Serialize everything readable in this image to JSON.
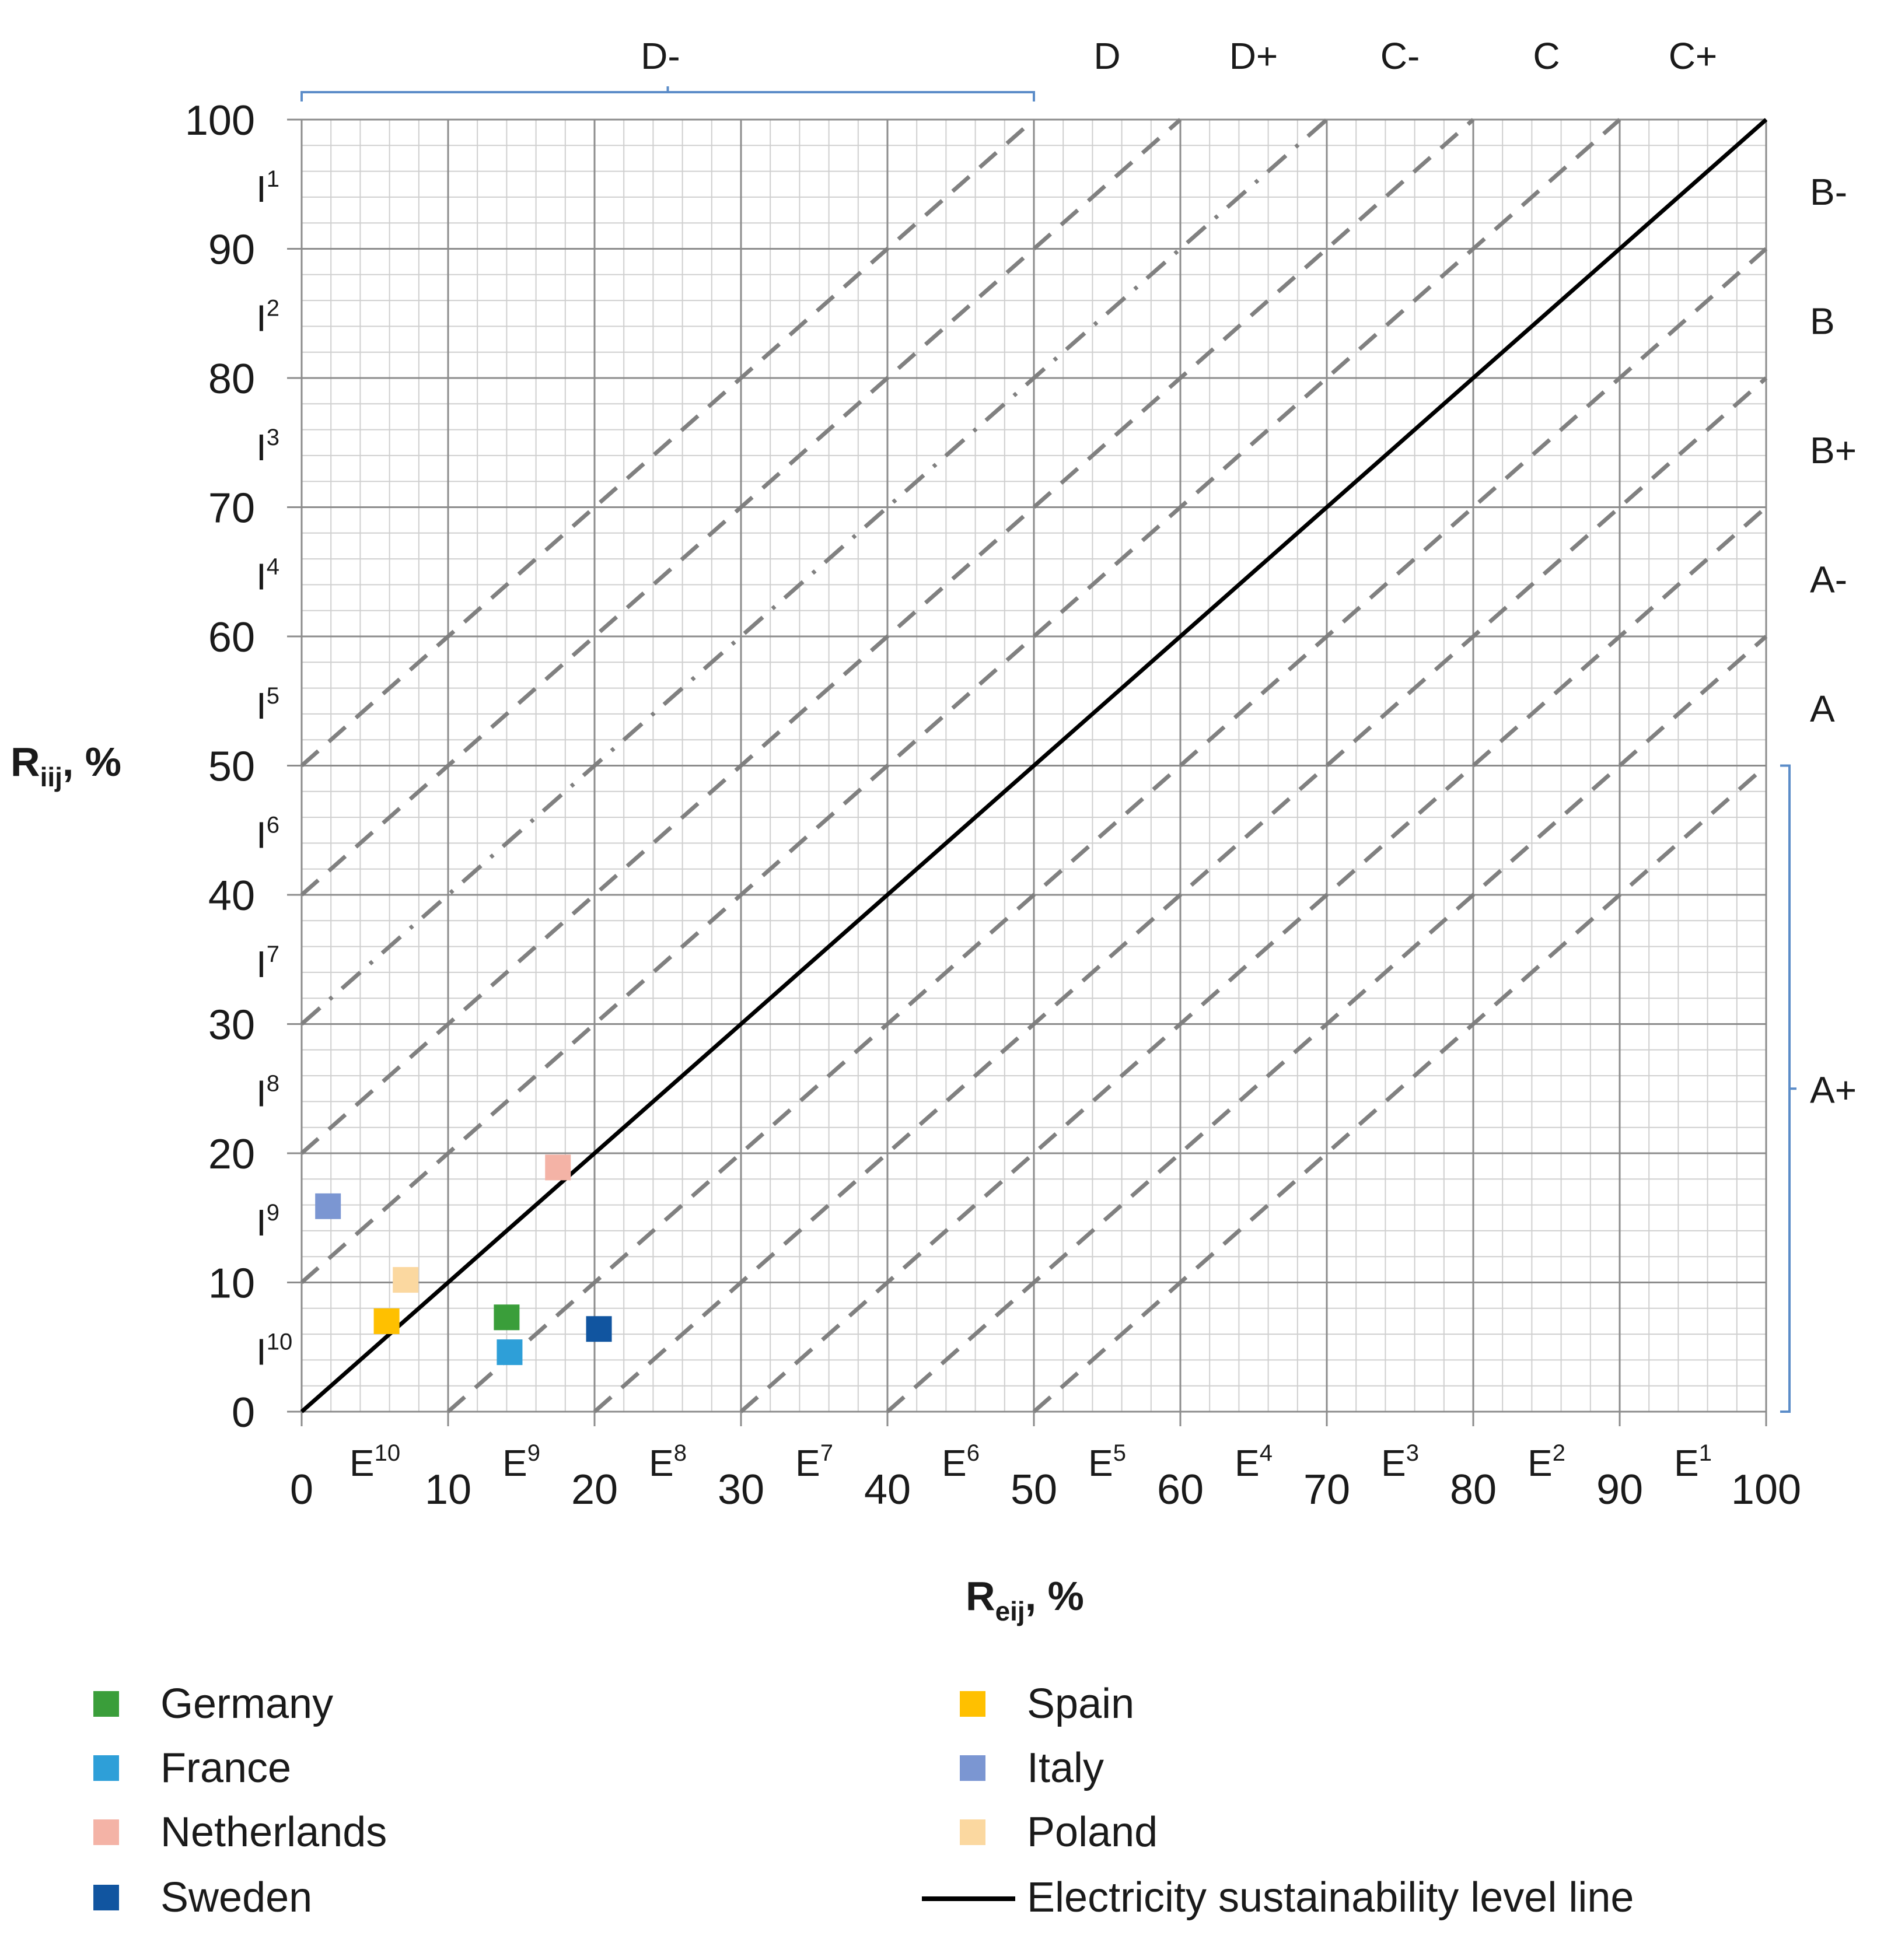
{
  "chart_data": {
    "type": "scatter",
    "title": "",
    "xlabel": "R",
    "xlabel_sub": "eij",
    "xlabel_unit": ", %",
    "ylabel": "R",
    "ylabel_sub": "iij",
    "ylabel_unit": ", %",
    "xlim": [
      0,
      100
    ],
    "ylim": [
      0,
      100
    ],
    "x_ticks": [
      "0",
      "10",
      "20",
      "30",
      "40",
      "50",
      "60",
      "70",
      "80",
      "90",
      "100"
    ],
    "y_ticks": [
      "0",
      "10",
      "20",
      "30",
      "40",
      "50",
      "60",
      "70",
      "80",
      "90",
      "100"
    ],
    "grid": true,
    "minor_grid_step": 2,
    "series": [
      {
        "name": "Germany",
        "color": "#3a9e3a",
        "points": [
          {
            "x": 14,
            "y": 7.3
          }
        ]
      },
      {
        "name": "France",
        "color": "#2e9fd8",
        "points": [
          {
            "x": 14.2,
            "y": 4.6
          }
        ]
      },
      {
        "name": "Netherlands",
        "color": "#f4b3a6",
        "points": [
          {
            "x": 17.5,
            "y": 18.9
          }
        ]
      },
      {
        "name": "Sweden",
        "color": "#1155a0",
        "points": [
          {
            "x": 20.3,
            "y": 6.4
          }
        ]
      },
      {
        "name": "Spain",
        "color": "#ffc000",
        "points": [
          {
            "x": 5.8,
            "y": 7.0
          }
        ]
      },
      {
        "name": "Italy",
        "color": "#7b96d2",
        "points": [
          {
            "x": 1.8,
            "y": 15.9
          }
        ]
      },
      {
        "name": "Poland",
        "color": "#fbd8a0",
        "points": [
          {
            "x": 7.1,
            "y": 10.2
          }
        ]
      }
    ],
    "sustainability_line": {
      "name": "Electricity sustainability level line",
      "x": [
        0,
        100
      ],
      "y": [
        0,
        100
      ],
      "color": "#000000"
    },
    "diagonal_offsets": [
      50,
      40,
      30,
      20,
      10,
      -10,
      -20,
      -30,
      -40,
      -50
    ],
    "dashdot_offset": 30,
    "x_zones": [
      {
        "base": "E",
        "sup": "10",
        "x": 5
      },
      {
        "base": "E",
        "sup": "9",
        "x": 15
      },
      {
        "base": "E",
        "sup": "8",
        "x": 25
      },
      {
        "base": "E",
        "sup": "7",
        "x": 35
      },
      {
        "base": "E",
        "sup": "6",
        "x": 45
      },
      {
        "base": "E",
        "sup": "5",
        "x": 55
      },
      {
        "base": "E",
        "sup": "4",
        "x": 65
      },
      {
        "base": "E",
        "sup": "3",
        "x": 75
      },
      {
        "base": "E",
        "sup": "2",
        "x": 85
      },
      {
        "base": "E",
        "sup": "1",
        "x": 95
      }
    ],
    "y_zones": [
      {
        "base": "I",
        "sup": "1",
        "y": 95
      },
      {
        "base": "I",
        "sup": "2",
        "y": 85
      },
      {
        "base": "I",
        "sup": "3",
        "y": 75
      },
      {
        "base": "I",
        "sup": "4",
        "y": 65
      },
      {
        "base": "I",
        "sup": "5",
        "y": 55
      },
      {
        "base": "I",
        "sup": "6",
        "y": 45
      },
      {
        "base": "I",
        "sup": "7",
        "y": 35
      },
      {
        "base": "I",
        "sup": "8",
        "y": 25
      },
      {
        "base": "I",
        "sup": "9",
        "y": 15
      },
      {
        "base": "I",
        "sup": "10",
        "y": 5
      }
    ],
    "top_labels": [
      {
        "label": "D-",
        "x": 24.5
      },
      {
        "label": "D",
        "x": 55
      },
      {
        "label": "D+",
        "x": 65
      },
      {
        "label": "C-",
        "x": 75
      },
      {
        "label": "C",
        "x": 85
      },
      {
        "label": "C+",
        "x": 95
      }
    ],
    "top_bracket": [
      0,
      50
    ],
    "right_labels": [
      {
        "label": "B-",
        "y": 94.5
      },
      {
        "label": "B",
        "y": 84.5
      },
      {
        "label": "B+",
        "y": 74.5
      },
      {
        "label": "A-",
        "y": 64.5
      },
      {
        "label": "A",
        "y": 54.5
      },
      {
        "label": "A+",
        "y": 25
      }
    ],
    "right_bracket": [
      0,
      50
    ],
    "legend_placement": "bottom"
  }
}
